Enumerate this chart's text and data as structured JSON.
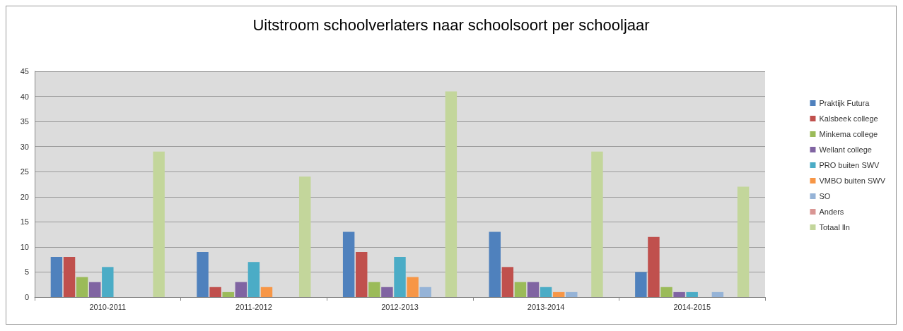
{
  "chart_data": {
    "type": "bar",
    "title": "Uitstroom schoolverlaters naar schoolsoort per schooljaar",
    "categories": [
      "2010-2011",
      "2011-2012",
      "2012-2013",
      "2013-2014",
      "2014-2015"
    ],
    "series": [
      {
        "name": "Praktijk Futura",
        "color": "#4f81bd",
        "values": [
          8,
          9,
          13,
          13,
          5
        ]
      },
      {
        "name": "Kalsbeek college",
        "color": "#c0504d",
        "values": [
          8,
          2,
          9,
          6,
          12
        ]
      },
      {
        "name": "Minkema college",
        "color": "#9bbb59",
        "values": [
          4,
          1,
          3,
          3,
          2
        ]
      },
      {
        "name": "Wellant college",
        "color": "#8064a2",
        "values": [
          3,
          3,
          2,
          3,
          1
        ]
      },
      {
        "name": "PRO buiten SWV",
        "color": "#4bacc6",
        "values": [
          6,
          7,
          8,
          2,
          1
        ]
      },
      {
        "name": "VMBO buiten SWV",
        "color": "#f79646",
        "values": [
          0,
          2,
          4,
          1,
          0
        ]
      },
      {
        "name": "SO",
        "color": "#95b3d7",
        "values": [
          0,
          0,
          2,
          1,
          1
        ]
      },
      {
        "name": "Anders",
        "color": "#d99694",
        "values": [
          0,
          0,
          0,
          0,
          0
        ]
      },
      {
        "name": "Totaal lln",
        "color": "#c3d69b",
        "values": [
          29,
          24,
          41,
          29,
          22
        ]
      }
    ],
    "ylim": [
      0,
      45
    ],
    "yticks": [
      0,
      5,
      10,
      15,
      20,
      25,
      30,
      35,
      40,
      45
    ],
    "grid": "y",
    "legend": "right"
  }
}
